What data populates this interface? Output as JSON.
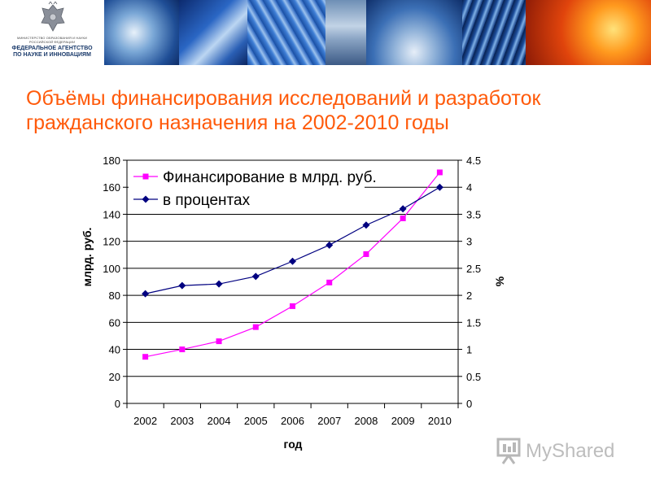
{
  "header": {
    "ministry_line1": "МИНИСТЕРСТВО ОБРАЗОВАНИЯ И НАУКИ",
    "ministry_line2": "РОССИЙСКОЙ ФЕДЕРАЦИИ",
    "agency_line1": "ФЕДЕРАЛЬНОЕ АГЕНТСТВО",
    "agency_line2": "ПО НАУКЕ И ИННОВАЦИЯМ"
  },
  "slide": {
    "title_line1": "Объёмы финансирования исследований и разработок",
    "title_line2": "гражданского назначения на 2002-2010 годы"
  },
  "watermark": {
    "text": "MyShared"
  },
  "colors": {
    "title": "#ff5a0a",
    "series_money": "#ff00ff",
    "series_percent": "#000080"
  },
  "chart_data": {
    "type": "line",
    "xlabel": "год",
    "ylabel": "млрд. руб.",
    "y2label": "%",
    "categories": [
      "2002",
      "2003",
      "2004",
      "2005",
      "2006",
      "2007",
      "2008",
      "2009",
      "2010"
    ],
    "ylim": [
      0,
      180
    ],
    "yticks": [
      "0",
      "20",
      "40",
      "60",
      "80",
      "100",
      "120",
      "140",
      "160",
      "180"
    ],
    "y2lim": [
      0,
      4.5
    ],
    "y2ticks": [
      "0",
      "0.5",
      "1",
      "1.5",
      "2",
      "2.5",
      "3",
      "3.5",
      "4",
      "4.5"
    ],
    "grid": true,
    "legend_position": "top-left",
    "series": [
      {
        "name": "Финансирование в млрд. руб.",
        "axis": "left",
        "marker": "square",
        "color": "#ff00ff",
        "values": [
          34.5,
          40,
          46,
          56.5,
          72,
          89.5,
          110.5,
          137,
          171
        ]
      },
      {
        "name": "в процентах",
        "axis": "right",
        "marker": "diamond",
        "color": "#000080",
        "values": [
          2.03,
          2.18,
          2.21,
          2.35,
          2.63,
          2.93,
          3.3,
          3.6,
          4.0
        ]
      }
    ]
  }
}
